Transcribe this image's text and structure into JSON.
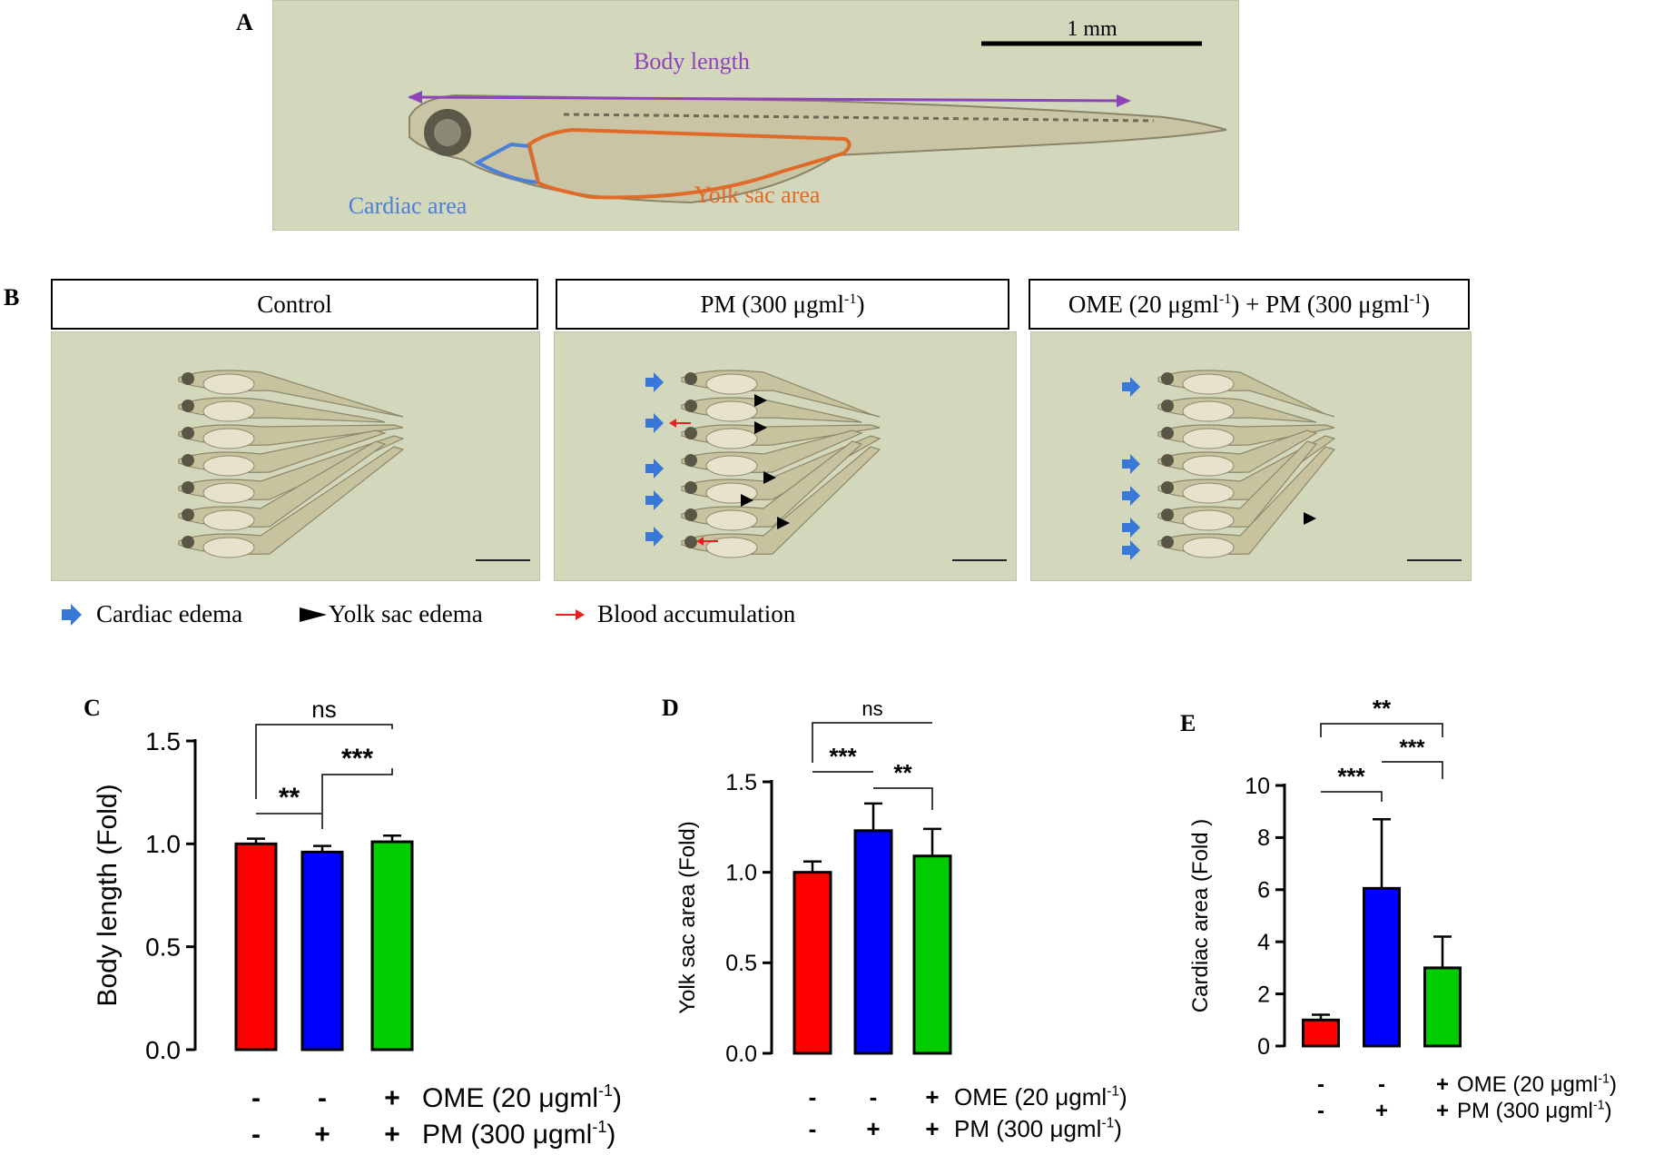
{
  "panels": {
    "a": "A",
    "b": "B",
    "c": "C",
    "d": "D",
    "e": "E"
  },
  "panel_a": {
    "scale_label": "1 mm",
    "body_length_label": "Body length",
    "cardiac_label": "Cardiac area",
    "yolk_label": "Yolk sac area",
    "colors": {
      "body": "#8e44b8",
      "cardiac": "#4a80d8",
      "yolk": "#e06a28"
    }
  },
  "panel_b": {
    "headers": {
      "control": "Control",
      "pm": "PM (300 μgml",
      "pm_sup": "-1",
      "pm_close": ")",
      "ome_a": "OME (20 μgml",
      "ome_sup": "-1",
      "ome_b": ") + PM (300 μgml",
      "ome_sup2": "-1",
      "ome_close": ")"
    },
    "legend": {
      "cardiac": "Cardiac edema",
      "yolk": "Yolk sac edema",
      "blood": "Blood accumulation"
    },
    "colors": {
      "cardiac_arrow": "#3a78d8",
      "yolk_arrow": "#000000",
      "blood_arrow": "#e82020"
    }
  },
  "treatments": {
    "ome": "OME (20 μgml",
    "pm": "PM (300 μgml",
    "sup": "-1",
    "close": ")",
    "ome_row": [
      "-",
      "-",
      "+"
    ],
    "pm_row": [
      "-",
      "+",
      "+"
    ]
  },
  "chart_data": [
    {
      "type": "bar",
      "panel": "C",
      "ylabel": "Body length (Fold)",
      "ylim": [
        0,
        1.5
      ],
      "yticks": [
        "0.0",
        "0.5",
        "1.0",
        "1.5"
      ],
      "values": [
        1.0,
        0.96,
        1.01
      ],
      "errors": [
        0.025,
        0.03,
        0.03
      ],
      "colors": [
        "#ff0000",
        "#0000ff",
        "#00cc00"
      ],
      "annotations": [
        "**",
        "***",
        "ns"
      ]
    },
    {
      "type": "bar",
      "panel": "D",
      "ylabel": "Yolk sac area (Fold)",
      "ylim": [
        0,
        1.5
      ],
      "yticks": [
        "0.0",
        "0.5",
        "1.0",
        "1.5"
      ],
      "values": [
        1.0,
        1.23,
        1.09
      ],
      "errors": [
        0.06,
        0.15,
        0.15
      ],
      "colors": [
        "#ff0000",
        "#0000ff",
        "#00cc00"
      ],
      "annotations": [
        "***",
        "**",
        "ns"
      ]
    },
    {
      "type": "bar",
      "panel": "E",
      "ylabel": "Cardiac area (Fold )",
      "ylim": [
        0,
        10
      ],
      "yticks": [
        "0",
        "2",
        "4",
        "6",
        "8",
        "10"
      ],
      "values": [
        1.0,
        6.05,
        3.0
      ],
      "errors": [
        0.2,
        2.65,
        1.2
      ],
      "colors": [
        "#ff0000",
        "#0000ff",
        "#00cc00"
      ],
      "annotations": [
        "***",
        "***",
        "**"
      ]
    }
  ]
}
